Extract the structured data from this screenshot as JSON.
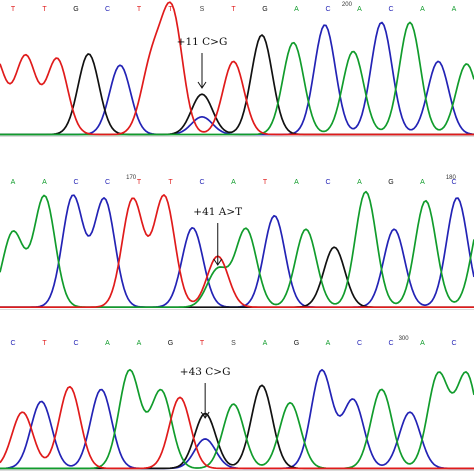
{
  "colors": {
    "A": "#119c2c",
    "C": "#2323b5",
    "G": "#111111",
    "T": "#e01b1b"
  },
  "chart_data": [
    {
      "type": "line",
      "xlabel": "",
      "ylabel": "",
      "position_labels": [
        {
          "text": "200",
          "x": 10.6
        }
      ],
      "bases": [
        "T",
        "T",
        "G",
        "C",
        "T",
        "T",
        "S",
        "T",
        "G",
        "A",
        "C",
        "A",
        "C",
        "A",
        "A"
      ],
      "mutation": {
        "label": "+11 C>G",
        "x": 6.0
      },
      "peaks": [
        {
          "x": -0.6,
          "base": "T",
          "h": 0.62
        },
        {
          "x": 0.4,
          "base": "T",
          "h": 0.62
        },
        {
          "x": 1.4,
          "base": "T",
          "h": 0.6
        },
        {
          "x": 2.4,
          "base": "G",
          "h": 0.64
        },
        {
          "x": 3.4,
          "base": "C",
          "h": 0.55
        },
        {
          "x": 4.4,
          "base": "T",
          "h": 0.55
        },
        {
          "x": 5.05,
          "base": "T",
          "h": 0.95
        },
        {
          "x": 6.0,
          "base": "G",
          "h": 0.32
        },
        {
          "x": 6.0,
          "base": "C",
          "h": 0.14
        },
        {
          "x": 7.0,
          "base": "T",
          "h": 0.58
        },
        {
          "x": 7.9,
          "base": "G",
          "h": 0.79
        },
        {
          "x": 8.9,
          "base": "A",
          "h": 0.73
        },
        {
          "x": 9.9,
          "base": "C",
          "h": 0.87
        },
        {
          "x": 10.8,
          "base": "A",
          "h": 0.66
        },
        {
          "x": 11.7,
          "base": "C",
          "h": 0.89
        },
        {
          "x": 12.6,
          "base": "A",
          "h": 0.89
        },
        {
          "x": 13.5,
          "base": "C",
          "h": 0.58
        },
        {
          "x": 14.4,
          "base": "A",
          "h": 0.56
        }
      ]
    },
    {
      "type": "line",
      "xlabel": "",
      "ylabel": "",
      "position_labels": [
        {
          "text": "170",
          "x": 3.75
        },
        {
          "text": "180",
          "x": 13.9
        }
      ],
      "bases": [
        "A",
        "A",
        "C",
        "C",
        "T",
        "T",
        "C",
        "A",
        "T",
        "A",
        "C",
        "A",
        "G",
        "A",
        "C"
      ],
      "mutation": {
        "label": "+41 A>T",
        "x": 6.5
      },
      "peaks": [
        {
          "x": 0.0,
          "base": "A",
          "h": 0.5
        },
        {
          "x": 1.0,
          "base": "A",
          "h": 0.74
        },
        {
          "x": 1.9,
          "base": "C",
          "h": 0.74
        },
        {
          "x": 2.9,
          "base": "C",
          "h": 0.72
        },
        {
          "x": 3.8,
          "base": "T",
          "h": 0.72
        },
        {
          "x": 4.8,
          "base": "T",
          "h": 0.74
        },
        {
          "x": 5.7,
          "base": "C",
          "h": 0.53
        },
        {
          "x": 6.5,
          "base": "T",
          "h": 0.34
        },
        {
          "x": 6.5,
          "base": "A",
          "h": 0.25
        },
        {
          "x": 7.4,
          "base": "A",
          "h": 0.52
        },
        {
          "x": 8.3,
          "base": "C",
          "h": 0.61
        },
        {
          "x": 9.3,
          "base": "A",
          "h": 0.52
        },
        {
          "x": 10.2,
          "base": "G",
          "h": 0.4
        },
        {
          "x": 11.2,
          "base": "A",
          "h": 0.77
        },
        {
          "x": 12.1,
          "base": "C",
          "h": 0.52
        },
        {
          "x": 13.1,
          "base": "A",
          "h": 0.71
        },
        {
          "x": 14.1,
          "base": "C",
          "h": 0.73
        },
        {
          "x": 14.9,
          "base": "A",
          "h": 0.62
        }
      ]
    },
    {
      "type": "line",
      "xlabel": "",
      "ylabel": "",
      "position_labels": [
        {
          "text": "300",
          "x": 12.4
        }
      ],
      "bases": [
        "C",
        "T",
        "C",
        "A",
        "A",
        "G",
        "T",
        "S",
        "A",
        "G",
        "A",
        "C",
        "C",
        "A",
        "C"
      ],
      "mutation": {
        "label": "+43 C>G",
        "x": 6.1
      },
      "peaks": [
        {
          "x": 0.3,
          "base": "T",
          "h": 0.42
        },
        {
          "x": 0.9,
          "base": "C",
          "h": 0.5
        },
        {
          "x": 1.8,
          "base": "T",
          "h": 0.61
        },
        {
          "x": 2.8,
          "base": "C",
          "h": 0.59
        },
        {
          "x": 3.7,
          "base": "A",
          "h": 0.73
        },
        {
          "x": 4.7,
          "base": "A",
          "h": 0.58
        },
        {
          "x": 5.3,
          "base": "T",
          "h": 0.53
        },
        {
          "x": 6.1,
          "base": "G",
          "h": 0.41
        },
        {
          "x": 6.1,
          "base": "C",
          "h": 0.22
        },
        {
          "x": 7.0,
          "base": "A",
          "h": 0.48
        },
        {
          "x": 7.9,
          "base": "G",
          "h": 0.62
        },
        {
          "x": 8.8,
          "base": "A",
          "h": 0.49
        },
        {
          "x": 9.8,
          "base": "C",
          "h": 0.73
        },
        {
          "x": 10.8,
          "base": "C",
          "h": 0.51
        },
        {
          "x": 11.7,
          "base": "A",
          "h": 0.59
        },
        {
          "x": 12.6,
          "base": "C",
          "h": 0.42
        },
        {
          "x": 13.5,
          "base": "A",
          "h": 0.7
        },
        {
          "x": 14.4,
          "base": "A",
          "h": 0.7
        }
      ]
    }
  ]
}
